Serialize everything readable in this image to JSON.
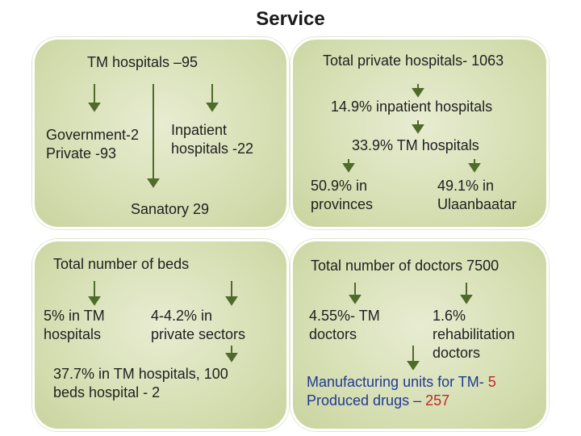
{
  "title": "Service",
  "tm_panel": {
    "header": "TM  hospitals –95",
    "gov": "Government-2",
    "priv": "Private -93",
    "inpatient_l1": "Inpatient",
    "inpatient_l2": "hospitals -22",
    "sanatory": "Sanatory 29"
  },
  "private_panel": {
    "header": "Total private hospitals- 1063",
    "inpatient_pct": "14.9% inpatient hospitals",
    "tm_pct": "33.9% TM hospitals",
    "prov_l1": "50.9% in",
    "prov_l2": "provinces",
    "ub_l1": "49.1% in",
    "ub_l2": "Ulaanbaatar"
  },
  "beds_panel": {
    "header": "Total number of beds",
    "tm_l1": "5% in TM",
    "tm_l2": "hospitals",
    "priv_l1": "4-4.2% in",
    "priv_l2": "private sectors",
    "detail_l1": "37.7% in TM hospitals, 100",
    "detail_l2": "beds hospital - 2"
  },
  "doctors_panel": {
    "header": "Total number of doctors 7500",
    "tm_l1": "4.55%- TM",
    "tm_l2": "doctors",
    "rehab_l1": "1.6%",
    "rehab_l2": "rehabilitation",
    "rehab_l3": "doctors",
    "mfg_text": "Manufacturing units for  TM- ",
    "mfg_value": "5",
    "drugs_text": "Produced  drugs – ",
    "drugs_value": "257"
  },
  "colors": {
    "arrow": "#4f6b2a",
    "panel_bg": "#d6dfb3",
    "blue_text": "#1f3a93",
    "red_text": "#c0282a"
  }
}
